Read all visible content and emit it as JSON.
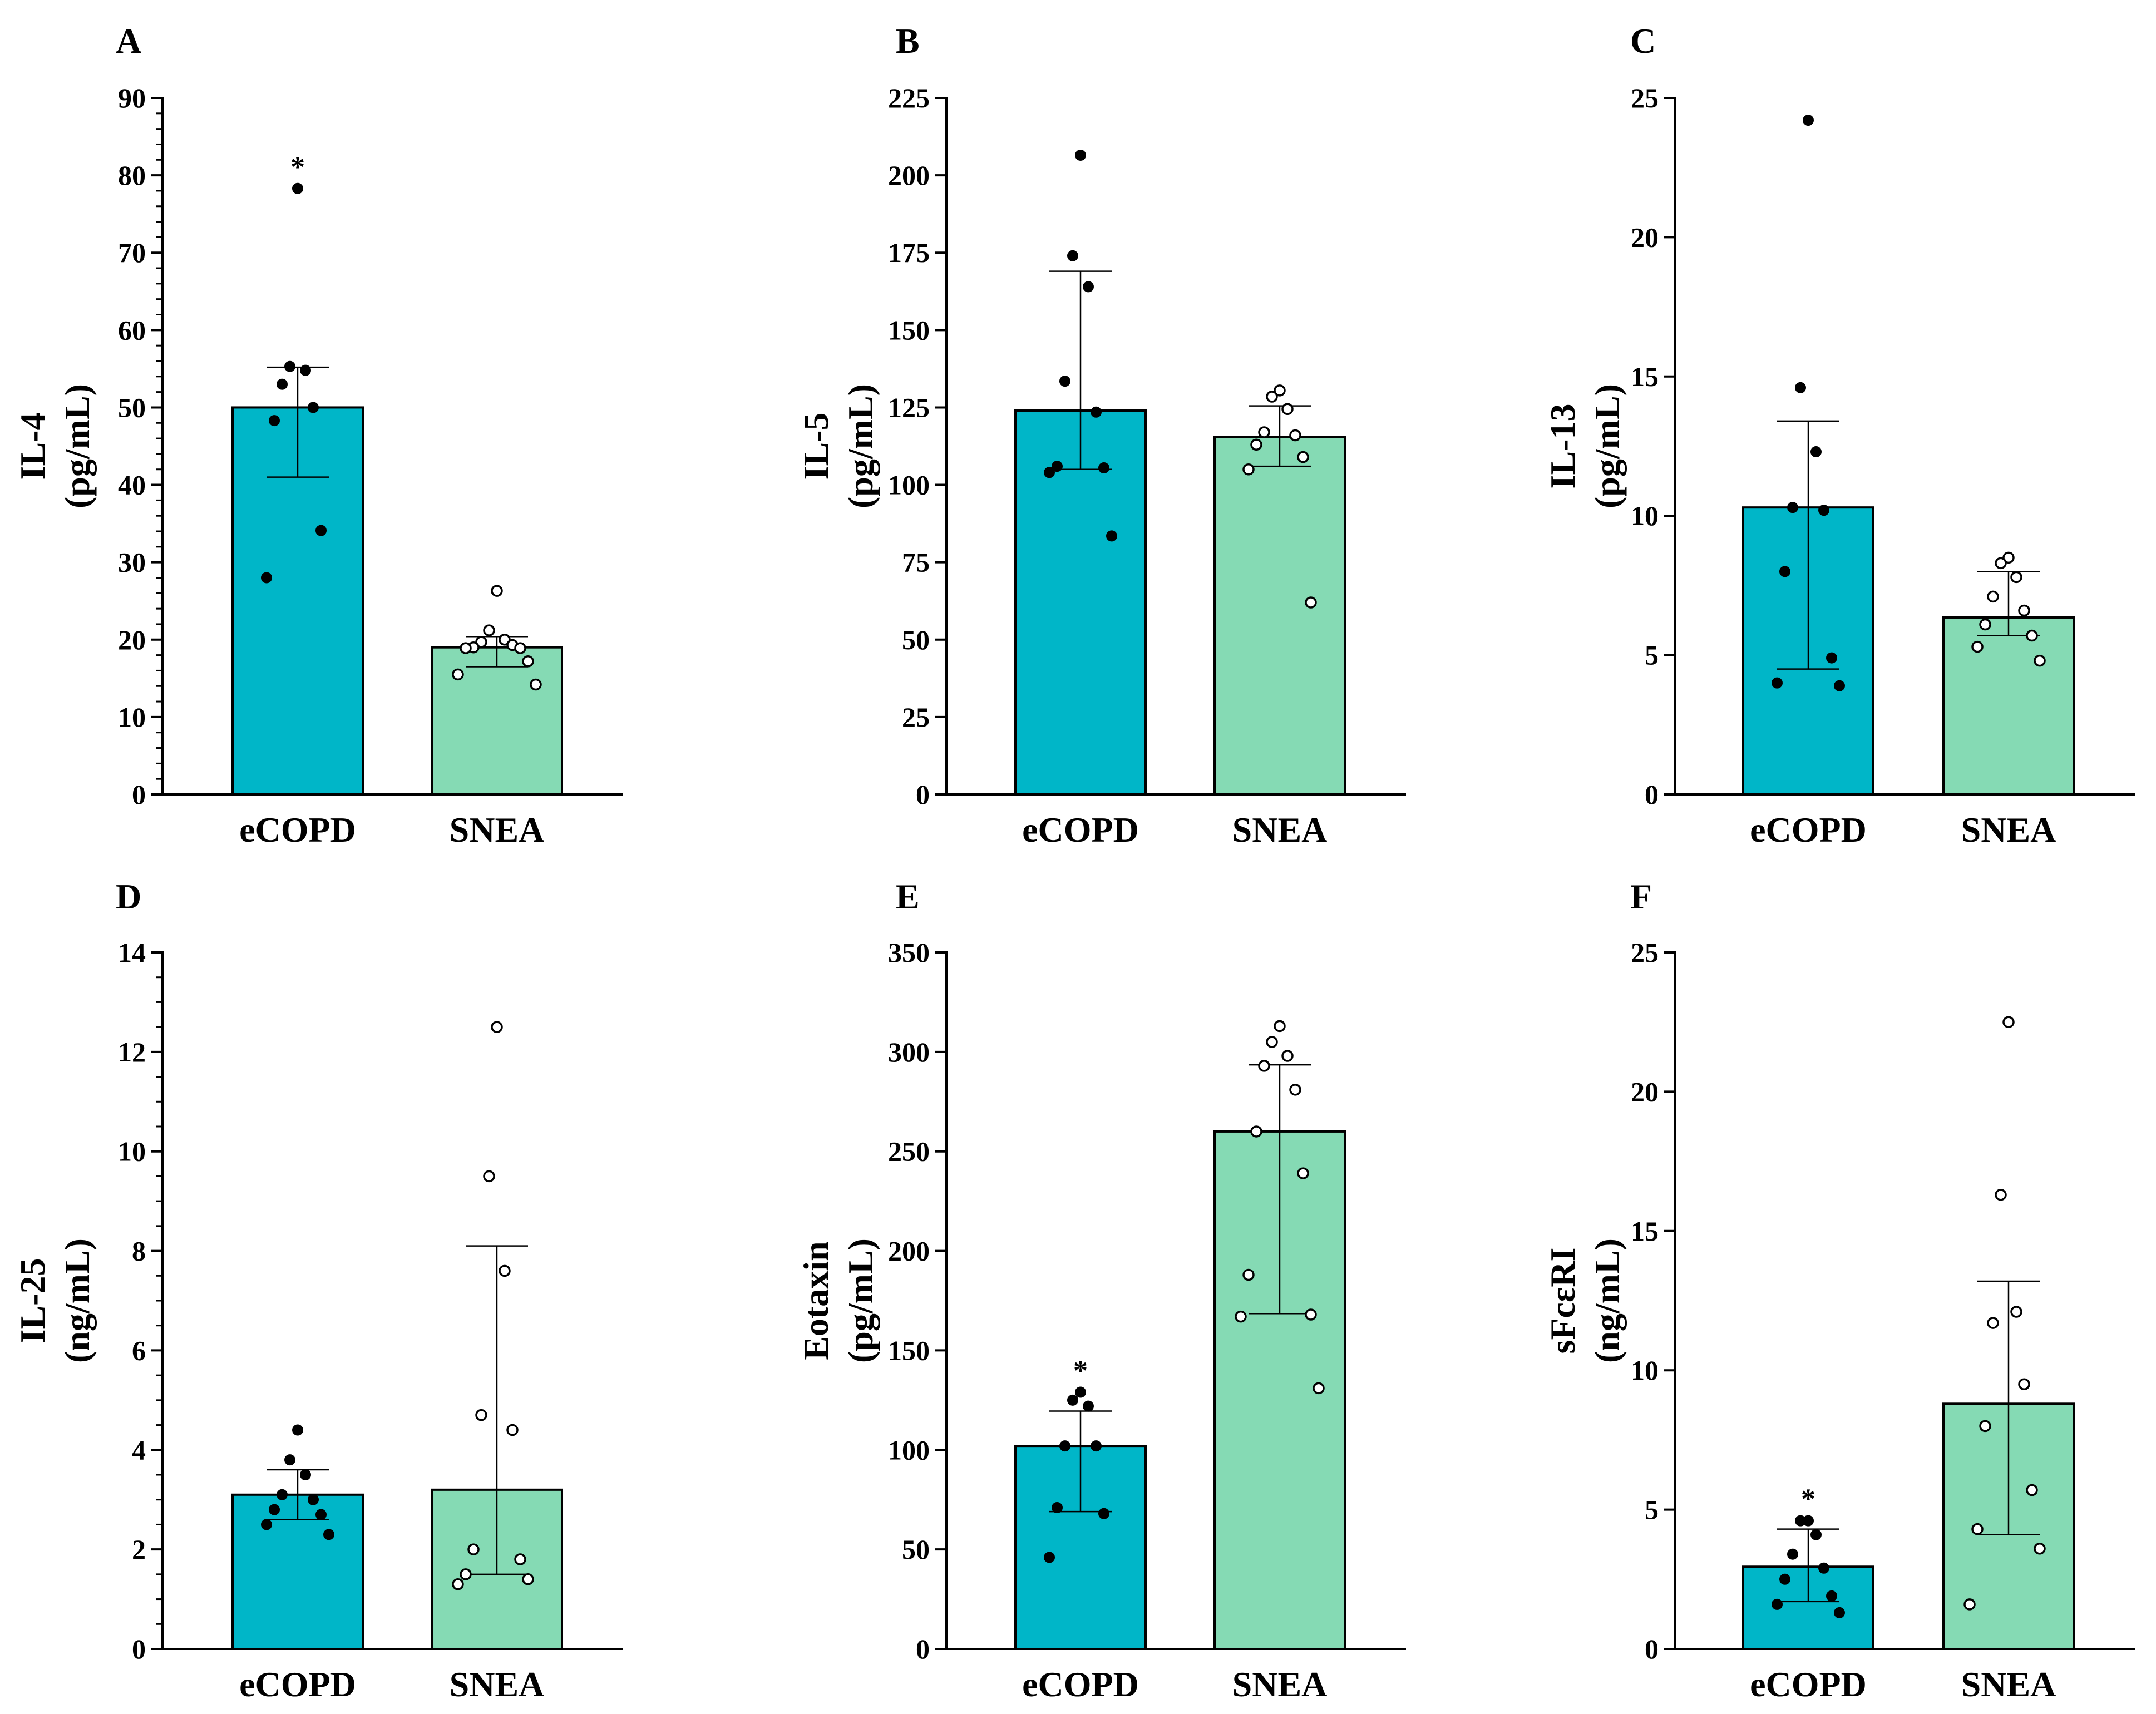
{
  "colors": {
    "eCOPD": "#00B6C8",
    "SNEA": "#85DAB4"
  },
  "chart_data": [
    {
      "panel": "A",
      "type": "bar",
      "ylabel": [
        "IL-4",
        "(pg/mL)"
      ],
      "categories": [
        "eCOPD",
        "SNEA"
      ],
      "ylim": [
        0,
        90
      ],
      "yticks": [
        0,
        10,
        20,
        30,
        40,
        50,
        60,
        70,
        80,
        90
      ],
      "minor_per_major": 4,
      "bars": [
        {
          "group": "eCOPD",
          "mean": 50,
          "err_low": 41,
          "err_high": 55.2,
          "star": "*",
          "points": [
            78.3,
            55.3,
            54.8,
            53,
            50,
            48.3,
            34.1,
            28
          ]
        },
        {
          "group": "SNEA",
          "mean": 19,
          "err_low": 16.5,
          "err_high": 20.4,
          "star": "",
          "points": [
            26.3,
            21.2,
            20,
            19.7,
            19.3,
            19,
            18.9,
            18.9,
            17.2,
            15.5,
            14.2
          ]
        }
      ]
    },
    {
      "panel": "B",
      "type": "bar",
      "ylabel": [
        "IL-5",
        "(pg/mL)"
      ],
      "categories": [
        "eCOPD",
        "SNEA"
      ],
      "ylim": [
        0,
        225
      ],
      "yticks": [
        0,
        25,
        50,
        75,
        100,
        125,
        150,
        175,
        200,
        225
      ],
      "minor_per_major": 0,
      "bars": [
        {
          "group": "eCOPD",
          "mean": 124,
          "err_low": 105,
          "err_high": 169,
          "star": "",
          "points": [
            206.5,
            174,
            164,
            133.5,
            123.5,
            106,
            105.5,
            104,
            83.5
          ]
        },
        {
          "group": "SNEA",
          "mean": 115.5,
          "err_low": 106,
          "err_high": 125.5,
          "star": "",
          "points": [
            130.5,
            128.5,
            124.5,
            117,
            116,
            113,
            109,
            105,
            62
          ]
        }
      ]
    },
    {
      "panel": "C",
      "type": "bar",
      "ylabel": [
        "IL-13",
        "(pg/mL)"
      ],
      "categories": [
        "eCOPD",
        "SNEA"
      ],
      "ylim": [
        0,
        25
      ],
      "yticks": [
        0,
        5,
        10,
        15,
        20,
        25
      ],
      "minor_per_major": 0,
      "bars": [
        {
          "group": "eCOPD",
          "mean": 10.3,
          "err_low": 4.5,
          "err_high": 13.4,
          "star": "",
          "points": [
            24.2,
            14.6,
            12.3,
            10.3,
            10.2,
            8,
            4.9,
            4,
            3.9
          ]
        },
        {
          "group": "SNEA",
          "mean": 6.35,
          "err_low": 5.7,
          "err_high": 8,
          "star": "",
          "points": [
            8.5,
            8.3,
            7.8,
            7.1,
            6.6,
            6.1,
            5.7,
            5.3,
            4.8
          ]
        }
      ]
    },
    {
      "panel": "D",
      "type": "bar",
      "ylabel": [
        "IL-25",
        "(ng/mL)"
      ],
      "categories": [
        "eCOPD",
        "SNEA"
      ],
      "ylim": [
        0,
        14
      ],
      "yticks": [
        0,
        2,
        4,
        6,
        8,
        10,
        12,
        14
      ],
      "minor_per_major": 3,
      "bars": [
        {
          "group": "eCOPD",
          "mean": 3.1,
          "err_low": 2.6,
          "err_high": 3.6,
          "star": "",
          "points": [
            4.4,
            3.8,
            3.5,
            3.1,
            3,
            2.8,
            2.7,
            2.5,
            2.3
          ]
        },
        {
          "group": "SNEA",
          "mean": 3.2,
          "err_low": 1.5,
          "err_high": 8.1,
          "star": "",
          "points": [
            12.5,
            9.5,
            7.6,
            4.7,
            4.4,
            2,
            1.8,
            1.5,
            1.4,
            1.3
          ]
        }
      ]
    },
    {
      "panel": "E",
      "type": "bar",
      "ylabel": [
        "Eotaxin",
        "(pg/mL)"
      ],
      "categories": [
        "eCOPD",
        "SNEA"
      ],
      "ylim": [
        0,
        350
      ],
      "yticks": [
        0,
        50,
        100,
        150,
        200,
        250,
        300,
        350
      ],
      "minor_per_major": 0,
      "bars": [
        {
          "group": "eCOPD",
          "mean": 102,
          "err_low": 69,
          "err_high": 119.5,
          "star": "*",
          "points": [
            129,
            125,
            122,
            102,
            102,
            71,
            68,
            46
          ]
        },
        {
          "group": "SNEA",
          "mean": 260,
          "err_low": 168.5,
          "err_high": 293.5,
          "star": "",
          "points": [
            313,
            305,
            298,
            293,
            281,
            260,
            239,
            188,
            168,
            167,
            131
          ]
        }
      ]
    },
    {
      "panel": "F",
      "type": "bar",
      "ylabel": [
        "sFcεRI",
        "(ng/mL)"
      ],
      "categories": [
        "eCOPD",
        "SNEA"
      ],
      "ylim": [
        0,
        25
      ],
      "yticks": [
        0,
        5,
        10,
        15,
        20,
        25
      ],
      "minor_per_major": 0,
      "bars": [
        {
          "group": "eCOPD",
          "mean": 2.95,
          "err_low": 1.7,
          "err_high": 4.3,
          "star": "*",
          "points": [
            4.6,
            4.6,
            4.1,
            3.4,
            2.9,
            2.5,
            1.9,
            1.6,
            1.3
          ]
        },
        {
          "group": "SNEA",
          "mean": 8.8,
          "err_low": 4.1,
          "err_high": 13.2,
          "star": "",
          "points": [
            22.5,
            16.3,
            12.1,
            11.7,
            9.5,
            8,
            5.7,
            4.3,
            3.6,
            1.6
          ]
        }
      ]
    }
  ]
}
